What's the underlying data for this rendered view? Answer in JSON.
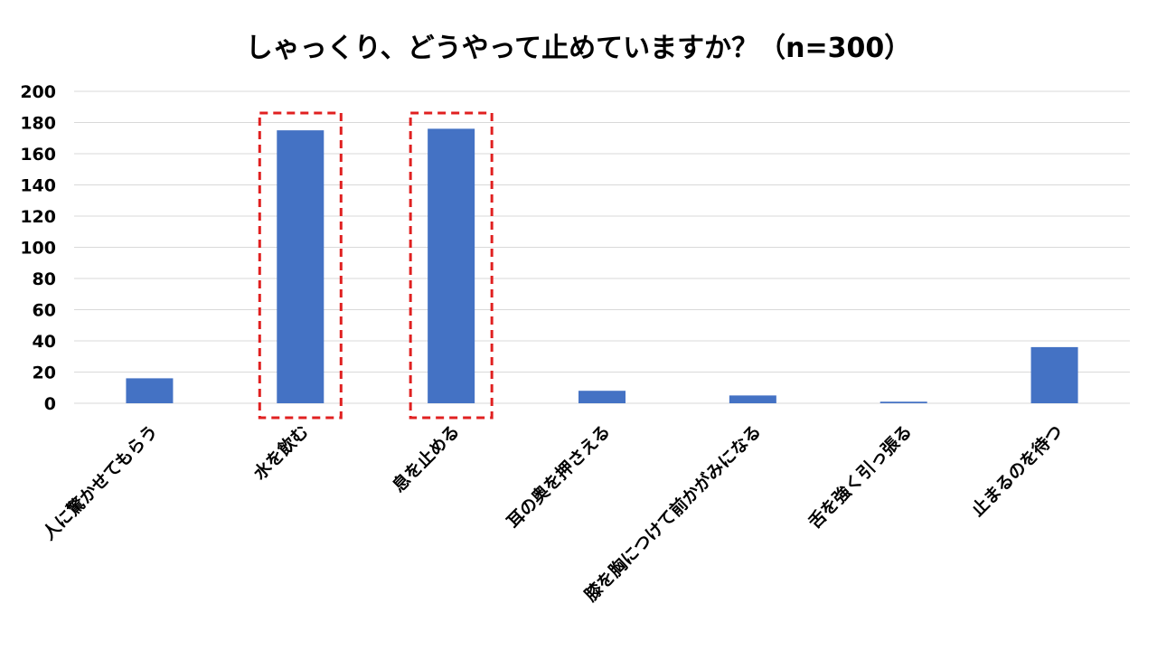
{
  "chart_data": {
    "type": "bar",
    "title": "しゃっくり、どうやって止めていますか？（n=300）",
    "xlabel": "",
    "ylabel": "",
    "ylim": [
      0,
      200
    ],
    "yticks": [
      0,
      20,
      40,
      60,
      80,
      100,
      120,
      140,
      160,
      180,
      200
    ],
    "grid": true,
    "categories": [
      "人に驚かせてもらう",
      "水を飲む",
      "息を止める",
      "耳の奥を押さえる",
      "膝を胸につけて前かがみになる",
      "舌を強く引っ張る",
      "止まるのを待つ"
    ],
    "values": [
      16,
      175,
      176,
      8,
      5,
      1,
      36
    ],
    "highlighted_categories": [
      "水を飲む",
      "息を止める"
    ],
    "colors": {
      "bar": "#4472C4",
      "grid": "#D9D9D9",
      "highlight_box": "#E02020"
    }
  }
}
